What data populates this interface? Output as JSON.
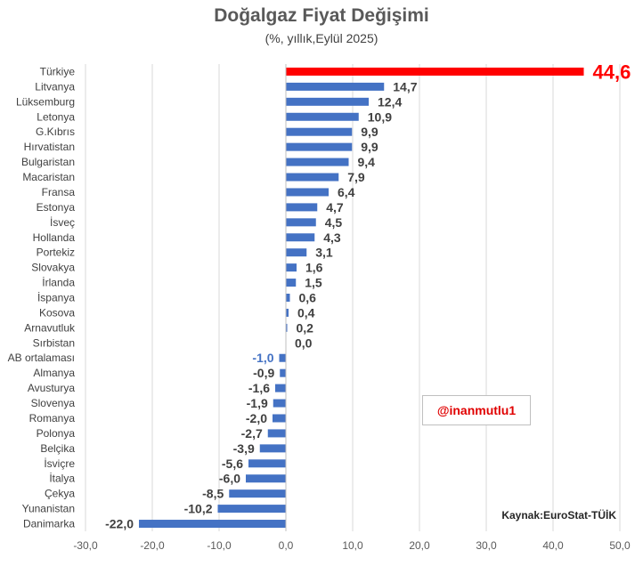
{
  "chart_data": {
    "type": "bar",
    "orientation": "horizontal",
    "title": "Doğalgaz Fiyat Değişimi",
    "subtitle": "(%, yıllık,Eylül 2025)",
    "categories": [
      "Türkiye",
      "Litvanya",
      "Lüksemburg",
      "Letonya",
      "G.Kıbrıs",
      "Hırvatistan",
      "Bulgaristan",
      "Macaristan",
      "Fransa",
      "Estonya",
      "İsveç",
      "Hollanda",
      "Portekiz",
      "Slovakya",
      "İrlanda",
      "İspanya",
      "Kosova",
      "Arnavutluk",
      "Sırbistan",
      "AB ortalaması",
      "Almanya",
      "Avusturya",
      "Slovenya",
      "Romanya",
      "Polonya",
      "Belçika",
      "İsviçre",
      "İtalya",
      "Çekya",
      "Yunanistan",
      "Danimarka"
    ],
    "values": [
      44.6,
      14.7,
      12.4,
      10.9,
      9.9,
      9.9,
      9.4,
      7.9,
      6.4,
      4.7,
      4.5,
      4.3,
      3.1,
      1.6,
      1.5,
      0.6,
      0.4,
      0.2,
      0.0,
      -1.0,
      -0.9,
      -1.6,
      -1.9,
      -2.0,
      -2.7,
      -3.9,
      -5.6,
      -6.0,
      -8.5,
      -10.2,
      -22.0
    ],
    "value_labels": [
      "44,6",
      "14,7",
      "12,4",
      "10,9",
      "9,9",
      "9,9",
      "9,4",
      "7,9",
      "6,4",
      "4,7",
      "4,5",
      "4,3",
      "3,1",
      "1,6",
      "1,5",
      "0,6",
      "0,4",
      "0,2",
      "0,0",
      "-1,0",
      "-0,9",
      "-1,6",
      "-1,9",
      "-2,0",
      "-2,7",
      "-3,9",
      "-5,6",
      "-6,0",
      "-8,5",
      "-10,2",
      "-22,0"
    ],
    "xlim": [
      -30,
      50
    ],
    "x_ticks": [
      -30,
      -20,
      -10,
      0,
      10,
      20,
      30,
      40,
      50
    ],
    "x_tick_labels": [
      "-30,0",
      "-20,0",
      "-10,0",
      "0,0",
      "10,0",
      "20,0",
      "30,0",
      "40,0",
      "50,0"
    ],
    "grid": "vertical",
    "highlight": {
      "Türkiye": "#ff0000",
      "AB ortalaması_label": "#4472c4"
    },
    "colors": {
      "bar": "#4472c4",
      "highlight_bar": "#ff0000",
      "label": "#404040",
      "grid": "#d9d9d9"
    }
  },
  "watermark": "@inanmutlu1",
  "source": "Kaynak:EuroStat-TÜİK"
}
